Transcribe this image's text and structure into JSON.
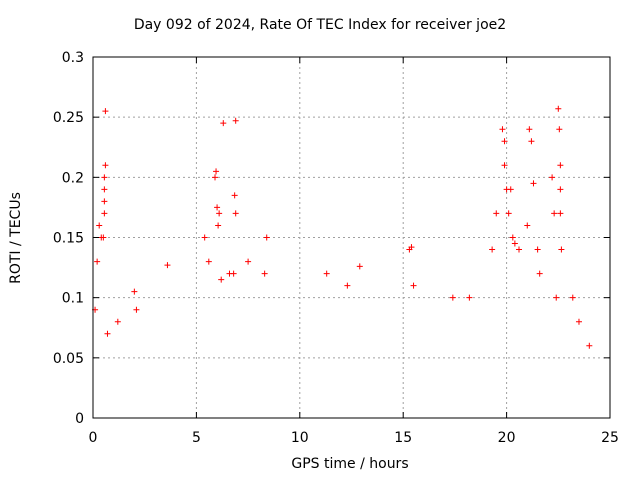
{
  "chart_data": {
    "type": "scatter",
    "title": "Day 092 of 2024, Rate Of TEC Index for receiver joe2",
    "xlabel": "GPS time / hours",
    "ylabel": "ROTI / TECUs",
    "xlim": [
      0,
      25
    ],
    "ylim": [
      0,
      0.3
    ],
    "xticks": [
      "0",
      "5",
      "10",
      "15",
      "20",
      "25"
    ],
    "yticks": [
      "0",
      "0.05",
      "0.1",
      "0.15",
      "0.2",
      "0.25",
      "0.3"
    ],
    "grid": true,
    "marker": "+",
    "color": "#ff0000",
    "series": [
      {
        "values": [
          [
            0.1,
            0.09
          ],
          [
            0.2,
            0.13
          ],
          [
            0.3,
            0.16
          ],
          [
            0.4,
            0.15
          ],
          [
            0.5,
            0.15
          ],
          [
            0.55,
            0.2
          ],
          [
            0.6,
            0.21
          ],
          [
            0.55,
            0.19
          ],
          [
            0.55,
            0.18
          ],
          [
            0.55,
            0.17
          ],
          [
            0.6,
            0.255
          ],
          [
            0.7,
            0.07
          ],
          [
            1.2,
            0.08
          ],
          [
            2.0,
            0.105
          ],
          [
            2.1,
            0.09
          ],
          [
            3.6,
            0.127
          ],
          [
            5.4,
            0.15
          ],
          [
            5.6,
            0.13
          ],
          [
            5.9,
            0.2
          ],
          [
            5.95,
            0.205
          ],
          [
            6.0,
            0.175
          ],
          [
            6.05,
            0.16
          ],
          [
            6.1,
            0.17
          ],
          [
            6.3,
            0.245
          ],
          [
            6.6,
            0.12
          ],
          [
            6.8,
            0.12
          ],
          [
            6.9,
            0.247
          ],
          [
            6.85,
            0.185
          ],
          [
            6.9,
            0.17
          ],
          [
            6.2,
            0.115
          ],
          [
            7.5,
            0.13
          ],
          [
            8.3,
            0.12
          ],
          [
            8.4,
            0.15
          ],
          [
            11.3,
            0.12
          ],
          [
            12.3,
            0.11
          ],
          [
            12.9,
            0.126
          ],
          [
            15.3,
            0.14
          ],
          [
            15.4,
            0.142
          ],
          [
            15.5,
            0.11
          ],
          [
            17.4,
            0.1
          ],
          [
            18.2,
            0.1
          ],
          [
            19.3,
            0.14
          ],
          [
            19.5,
            0.17
          ],
          [
            19.8,
            0.24
          ],
          [
            19.9,
            0.23
          ],
          [
            19.9,
            0.21
          ],
          [
            20.0,
            0.19
          ],
          [
            20.1,
            0.17
          ],
          [
            20.2,
            0.19
          ],
          [
            20.3,
            0.15
          ],
          [
            20.4,
            0.145
          ],
          [
            20.6,
            0.14
          ],
          [
            21.0,
            0.16
          ],
          [
            21.1,
            0.24
          ],
          [
            21.2,
            0.23
          ],
          [
            21.3,
            0.195
          ],
          [
            21.5,
            0.14
          ],
          [
            21.6,
            0.12
          ],
          [
            22.2,
            0.2
          ],
          [
            22.3,
            0.17
          ],
          [
            22.4,
            0.1
          ],
          [
            22.5,
            0.257
          ],
          [
            22.55,
            0.24
          ],
          [
            22.6,
            0.21
          ],
          [
            22.6,
            0.19
          ],
          [
            22.6,
            0.17
          ],
          [
            22.65,
            0.14
          ],
          [
            23.2,
            0.1
          ],
          [
            23.5,
            0.08
          ],
          [
            24.0,
            0.06
          ]
        ]
      }
    ]
  }
}
